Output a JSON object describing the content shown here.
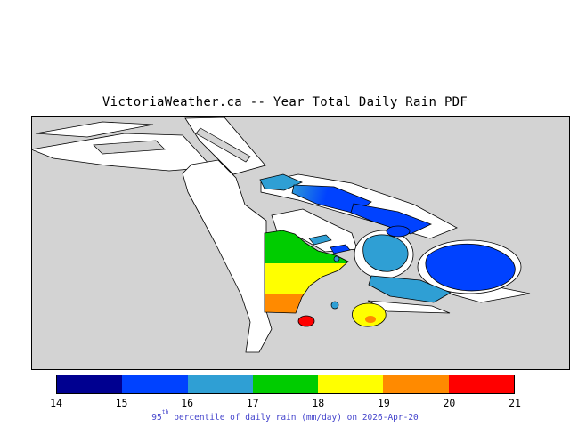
{
  "title": "VictoriaWeather.ca -- Year Total Daily Rain PDF",
  "caption": {
    "prefix": "95",
    "sup": "th",
    "rest": " percentile of daily rain (mm/day) on 2026-Apr-20"
  },
  "colorbar": {
    "ticks": [
      "14",
      "15",
      "16",
      "17",
      "18",
      "19",
      "20",
      "21"
    ],
    "segment_colors": [
      "#000090",
      "#0042FF",
      "#2F9FD4",
      "#00CC00",
      "#FFFF00",
      "#FF8A00",
      "#FF0000"
    ]
  },
  "palette": {
    "map_bg": "#D3D3D3",
    "no_data": "#FFFFFF",
    "outline": "#000000",
    "navy": "#000090",
    "blue": "#0042FF",
    "cyan": "#2F9FD4",
    "green": "#00CC00",
    "yellow": "#FFFF00",
    "orange": "#FF8A00",
    "red": "#FF0000",
    "caption_text": "#4444CC"
  },
  "chart_data": {
    "type": "heatmap",
    "title": "VictoriaWeather.ca -- Year Total Daily Rain PDF",
    "variable": "95th percentile of daily rain",
    "units": "mm/day",
    "date": "2026-Apr-20",
    "legend_position": "bottom",
    "colorbar": {
      "ticks": [
        14,
        15,
        16,
        17,
        18,
        19,
        20,
        21
      ],
      "range": [
        14,
        21
      ],
      "colors": [
        "#000090",
        "#0042FF",
        "#2F9FD4",
        "#00CC00",
        "#FFFF00",
        "#FF8A00",
        "#FF0000"
      ]
    },
    "regions": [
      {
        "area": "northwest island chain",
        "value_mm_per_day": "15-17"
      },
      {
        "area": "northeast elongated islands",
        "value_mm_per_day": "15-16"
      },
      {
        "area": "east-central islands",
        "value_mm_per_day": "16-17"
      },
      {
        "area": "far east large island",
        "value_mm_per_day": "15-16"
      },
      {
        "area": "central peninsula north band",
        "value_mm_per_day": "17-18"
      },
      {
        "area": "central peninsula middle band",
        "value_mm_per_day": "18-19"
      },
      {
        "area": "central peninsula south band",
        "value_mm_per_day": "19-20"
      },
      {
        "area": "small southern hotspot",
        "value_mm_per_day": "20-21"
      },
      {
        "area": "small southeast island",
        "value_mm_per_day": "18-19"
      }
    ]
  }
}
